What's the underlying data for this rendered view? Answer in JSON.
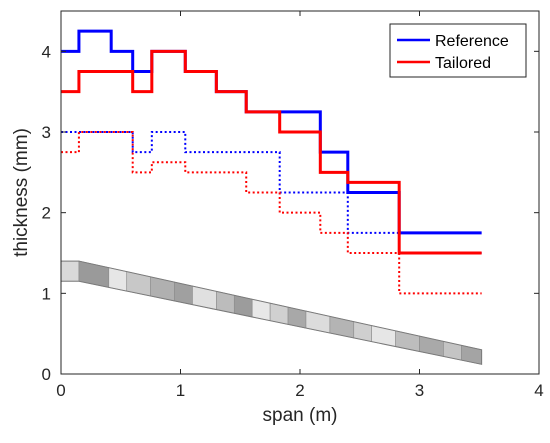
{
  "chart_data": {
    "type": "line",
    "xlabel": "span (m)",
    "ylabel": "thickness (mm)",
    "xlim": [
      0,
      4
    ],
    "ylim": [
      0,
      4.5
    ],
    "xticks": [
      "0",
      "1",
      "2",
      "3",
      "4"
    ],
    "yticks": [
      "0",
      "1",
      "2",
      "3",
      "4"
    ],
    "grid": false,
    "legend": {
      "position": "top-right",
      "entries": [
        {
          "label": "Reference",
          "color": "#0000ff"
        },
        {
          "label": "Tailored",
          "color": "#ff0000"
        }
      ]
    },
    "series": [
      {
        "name": "Reference",
        "color": "#0000ff",
        "style": "solid",
        "x": [
          0,
          0.15,
          0.15,
          0.42,
          0.42,
          0.6,
          0.6,
          0.76,
          0.76,
          1.04,
          1.04,
          1.3,
          1.3,
          1.55,
          1.55,
          1.83,
          1.83,
          2.17,
          2.17,
          2.4,
          2.4,
          2.83,
          2.83,
          3.52
        ],
        "y": [
          4.0,
          4.0,
          4.25,
          4.25,
          4.0,
          4.0,
          3.75,
          3.75,
          4.0,
          4.0,
          3.75,
          3.75,
          3.5,
          3.5,
          3.25,
          3.25,
          3.25,
          3.25,
          2.75,
          2.75,
          2.25,
          2.25,
          1.75,
          1.75
        ]
      },
      {
        "color": "#ff0000",
        "style": "solid",
        "x": [
          0,
          0.15,
          0.15,
          0.6,
          0.6,
          0.76,
          0.76,
          1.04,
          1.04,
          1.3,
          1.3,
          1.55,
          1.55,
          1.83,
          1.83,
          2.17,
          2.17,
          2.4,
          2.4,
          2.83,
          2.83,
          3.52
        ],
        "y": [
          3.5,
          3.5,
          3.75,
          3.75,
          3.5,
          3.5,
          4.0,
          4.0,
          3.75,
          3.75,
          3.5,
          3.5,
          3.25,
          3.25,
          3.0,
          3.0,
          2.5,
          2.5,
          2.375,
          2.375,
          1.5,
          1.5
        ]
      },
      {
        "color": "#0000ff",
        "style": "dotted",
        "x": [
          0,
          0.6,
          0.6,
          0.76,
          0.76,
          1.04,
          1.04,
          1.83,
          1.83,
          2.4,
          2.4,
          2.83,
          2.83,
          3.52
        ],
        "y": [
          3.0,
          3.0,
          2.75,
          2.75,
          3.0,
          3.0,
          2.75,
          2.75,
          2.25,
          2.25,
          1.75,
          1.75,
          1.5,
          1.5
        ]
      },
      {
        "color": "#ff0000",
        "style": "dotted",
        "x": [
          0,
          0.15,
          0.15,
          0.6,
          0.6,
          0.76,
          0.76,
          1.04,
          1.04,
          1.55,
          1.55,
          1.83,
          1.83,
          2.17,
          2.17,
          2.4,
          2.4,
          2.83,
          2.83,
          3.52
        ],
        "y": [
          2.75,
          2.75,
          3.0,
          3.0,
          2.5,
          2.5,
          2.625,
          2.625,
          2.5,
          2.5,
          2.25,
          2.25,
          2.0,
          2.0,
          1.75,
          1.75,
          1.5,
          1.5,
          1.0,
          1.0
        ]
      }
    ],
    "wing_outline": {
      "top_y": [
        1.4,
        1.4,
        0.3
      ],
      "bottom_y": [
        1.15,
        1.15,
        0.12
      ],
      "x": [
        0,
        0.15,
        3.52
      ],
      "segments": [
        {
          "x0": 0.0,
          "x1": 0.15,
          "shade": "#d9d9d9"
        },
        {
          "x0": 0.15,
          "x1": 0.4,
          "shade": "#9a9a9a"
        },
        {
          "x0": 0.4,
          "x1": 0.55,
          "shade": "#e6e6e6"
        },
        {
          "x0": 0.55,
          "x1": 0.75,
          "shade": "#c8c8c8"
        },
        {
          "x0": 0.75,
          "x1": 0.95,
          "shade": "#b0b0b0"
        },
        {
          "x0": 0.95,
          "x1": 1.1,
          "shade": "#a0a0a0"
        },
        {
          "x0": 1.1,
          "x1": 1.3,
          "shade": "#e0e0e0"
        },
        {
          "x0": 1.3,
          "x1": 1.45,
          "shade": "#bcbcbc"
        },
        {
          "x0": 1.45,
          "x1": 1.6,
          "shade": "#9c9c9c"
        },
        {
          "x0": 1.6,
          "x1": 1.75,
          "shade": "#e8e8e8"
        },
        {
          "x0": 1.75,
          "x1": 1.9,
          "shade": "#d0d0d0"
        },
        {
          "x0": 1.9,
          "x1": 2.05,
          "shade": "#a8a8a8"
        },
        {
          "x0": 2.05,
          "x1": 2.25,
          "shade": "#dcdcdc"
        },
        {
          "x0": 2.25,
          "x1": 2.45,
          "shade": "#b4b4b4"
        },
        {
          "x0": 2.45,
          "x1": 2.6,
          "shade": "#cfcfcf"
        },
        {
          "x0": 2.6,
          "x1": 2.8,
          "shade": "#e6e6e6"
        },
        {
          "x0": 2.8,
          "x1": 3.0,
          "shade": "#bdbdbd"
        },
        {
          "x0": 3.0,
          "x1": 3.2,
          "shade": "#a9a9a9"
        },
        {
          "x0": 3.2,
          "x1": 3.35,
          "shade": "#c4c4c4"
        },
        {
          "x0": 3.35,
          "x1": 3.52,
          "shade": "#a4a4a4"
        }
      ]
    }
  }
}
